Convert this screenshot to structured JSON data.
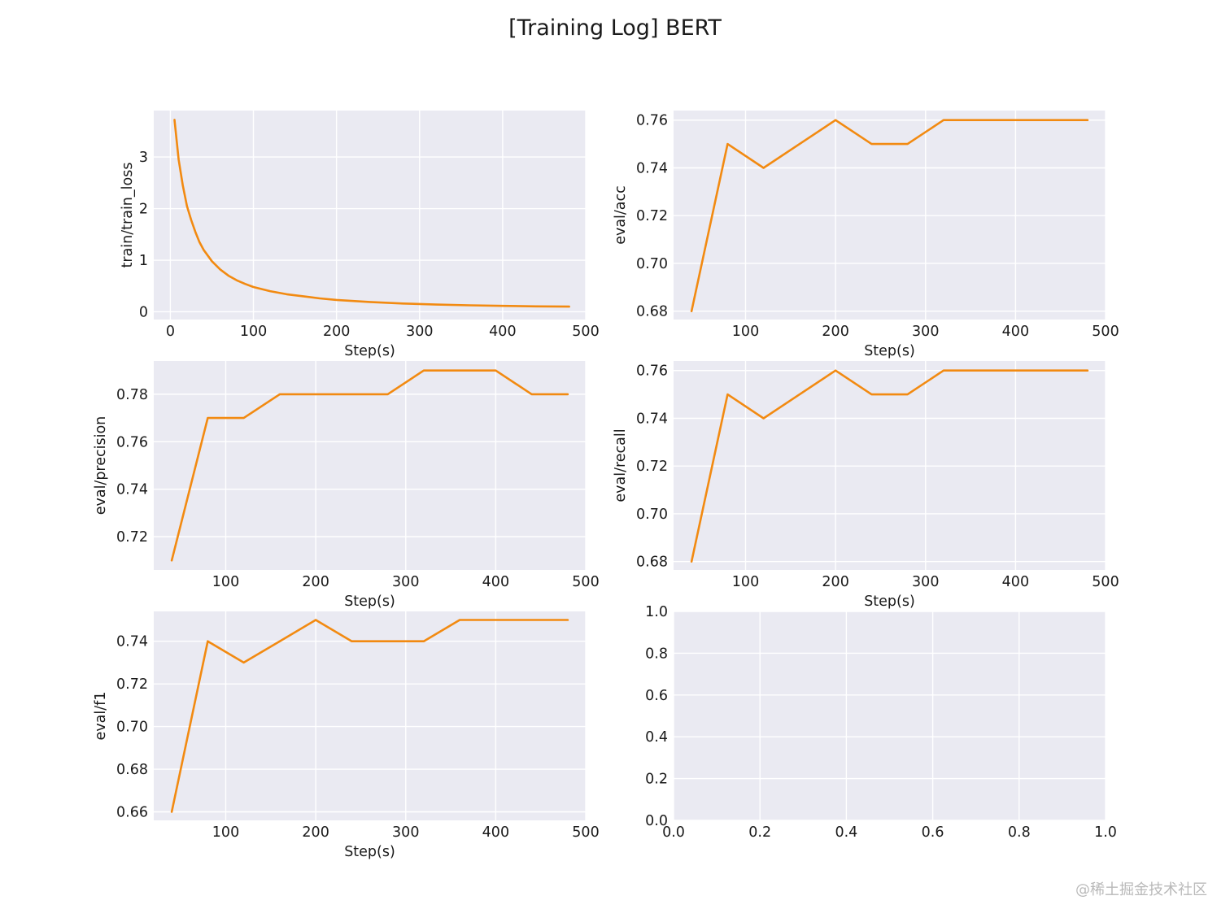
{
  "figure": {
    "suptitle": "[Training Log] BERT",
    "watermark": "@稀土掘金技术社区"
  },
  "colors": {
    "line": "#f28a11",
    "axes_bg": "#eaeaf2",
    "grid": "#ffffff",
    "text": "#1a1a1a"
  },
  "chart_data": [
    {
      "type": "line",
      "xlabel": "Step(s)",
      "ylabel": "train/train_loss",
      "xlim": [
        -20,
        500
      ],
      "ylim": [
        -0.15,
        3.9
      ],
      "xticks": [
        0,
        100,
        200,
        300,
        400,
        500
      ],
      "yticks": [
        0,
        1,
        2,
        3
      ],
      "grid": true,
      "x": [
        5,
        10,
        15,
        20,
        25,
        30,
        35,
        40,
        50,
        60,
        70,
        80,
        90,
        100,
        120,
        140,
        160,
        180,
        200,
        240,
        280,
        320,
        360,
        400,
        440,
        480
      ],
      "y": [
        3.72,
        2.95,
        2.45,
        2.05,
        1.78,
        1.55,
        1.35,
        1.2,
        0.98,
        0.82,
        0.7,
        0.61,
        0.54,
        0.48,
        0.4,
        0.34,
        0.3,
        0.26,
        0.23,
        0.19,
        0.16,
        0.14,
        0.125,
        0.115,
        0.105,
        0.1
      ]
    },
    {
      "type": "line",
      "xlabel": "Step(s)",
      "ylabel": "eval/acc",
      "xlim": [
        20,
        500
      ],
      "ylim": [
        0.6765,
        0.764
      ],
      "xticks": [
        100,
        200,
        300,
        400,
        500
      ],
      "yticks": [
        0.68,
        0.7,
        0.72,
        0.74,
        0.76
      ],
      "grid": true,
      "x": [
        40,
        80,
        120,
        160,
        200,
        240,
        280,
        320,
        360,
        400,
        440,
        480
      ],
      "y": [
        0.68,
        0.75,
        0.74,
        0.75,
        0.76,
        0.75,
        0.75,
        0.76,
        0.76,
        0.76,
        0.76,
        0.76
      ]
    },
    {
      "type": "line",
      "xlabel": "Step(s)",
      "ylabel": "eval/precision",
      "xlim": [
        20,
        500
      ],
      "ylim": [
        0.706,
        0.794
      ],
      "xticks": [
        100,
        200,
        300,
        400,
        500
      ],
      "yticks": [
        0.72,
        0.74,
        0.76,
        0.78
      ],
      "grid": true,
      "x": [
        40,
        80,
        120,
        160,
        200,
        240,
        280,
        320,
        360,
        400,
        440,
        480
      ],
      "y": [
        0.71,
        0.77,
        0.77,
        0.78,
        0.78,
        0.78,
        0.78,
        0.79,
        0.79,
        0.79,
        0.78,
        0.78
      ]
    },
    {
      "type": "line",
      "xlabel": "Step(s)",
      "ylabel": "eval/recall",
      "xlim": [
        20,
        500
      ],
      "ylim": [
        0.6765,
        0.764
      ],
      "xticks": [
        100,
        200,
        300,
        400,
        500
      ],
      "yticks": [
        0.68,
        0.7,
        0.72,
        0.74,
        0.76
      ],
      "grid": true,
      "x": [
        40,
        80,
        120,
        160,
        200,
        240,
        280,
        320,
        360,
        400,
        440,
        480
      ],
      "y": [
        0.68,
        0.75,
        0.74,
        0.75,
        0.76,
        0.75,
        0.75,
        0.76,
        0.76,
        0.76,
        0.76,
        0.76
      ]
    },
    {
      "type": "line",
      "xlabel": "Step(s)",
      "ylabel": "eval/f1",
      "xlim": [
        20,
        500
      ],
      "ylim": [
        0.656,
        0.754
      ],
      "xticks": [
        100,
        200,
        300,
        400,
        500
      ],
      "yticks": [
        0.66,
        0.68,
        0.7,
        0.72,
        0.74
      ],
      "grid": true,
      "x": [
        40,
        80,
        120,
        160,
        200,
        240,
        280,
        320,
        360,
        400,
        440,
        480
      ],
      "y": [
        0.66,
        0.74,
        0.73,
        0.74,
        0.75,
        0.74,
        0.74,
        0.74,
        0.75,
        0.75,
        0.75,
        0.75
      ]
    },
    {
      "type": "line",
      "xlabel": "",
      "ylabel": "",
      "xlim": [
        0,
        1
      ],
      "ylim": [
        0,
        1
      ],
      "xticks": [
        0.0,
        0.2,
        0.4,
        0.6,
        0.8,
        1.0
      ],
      "yticks": [
        0.0,
        0.2,
        0.4,
        0.6,
        0.8,
        1.0
      ],
      "grid": true,
      "x": [],
      "y": []
    }
  ]
}
